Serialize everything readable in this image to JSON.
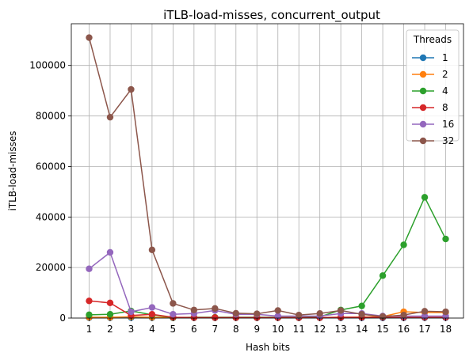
{
  "chart_data": {
    "type": "line",
    "title": "iTLB-load-misses, concurrent_output",
    "xlabel": "Hash bits",
    "ylabel": "iTLB-load-misses",
    "x": [
      1,
      2,
      3,
      4,
      5,
      6,
      7,
      8,
      9,
      10,
      11,
      12,
      13,
      14,
      15,
      16,
      17,
      18
    ],
    "xlim": [
      0.15,
      18.85
    ],
    "ylim": [
      0,
      116500
    ],
    "yticks": [
      0,
      20000,
      40000,
      60000,
      80000,
      100000
    ],
    "grid": true,
    "legend": {
      "title": "Threads",
      "placement": "top-right"
    },
    "series": [
      {
        "name": "1",
        "color": "#1f77b4",
        "values": [
          150,
          150,
          200,
          150,
          120,
          100,
          120,
          100,
          100,
          120,
          100,
          100,
          100,
          120,
          100,
          120,
          150,
          150
        ]
      },
      {
        "name": "2",
        "color": "#ff7f0e",
        "values": [
          300,
          300,
          500,
          300,
          200,
          200,
          200,
          200,
          200,
          200,
          200,
          200,
          300,
          400,
          600,
          2500,
          2200,
          2200
        ]
      },
      {
        "name": "4",
        "color": "#2ca02c",
        "values": [
          1300,
          1500,
          2800,
          1300,
          200,
          300,
          300,
          300,
          300,
          300,
          300,
          500,
          3200,
          4800,
          16800,
          29000,
          47800,
          31300
        ]
      },
      {
        "name": "8",
        "color": "#d62728",
        "values": [
          6800,
          6000,
          1000,
          1500,
          300,
          200,
          200,
          200,
          200,
          200,
          200,
          200,
          300,
          300,
          300,
          300,
          300,
          300
        ]
      },
      {
        "name": "16",
        "color": "#9467bd",
        "values": [
          19500,
          26000,
          2500,
          4200,
          1500,
          1800,
          3000,
          1500,
          1500,
          800,
          800,
          800,
          1800,
          1800,
          800,
          800,
          800,
          800
        ]
      },
      {
        "name": "32",
        "color": "#8c564b",
        "values": [
          111000,
          79500,
          90500,
          27000,
          5800,
          3200,
          3800,
          1900,
          1700,
          3000,
          1200,
          1800,
          3000,
          1500,
          600,
          1200,
          2700,
          2500
        ]
      }
    ]
  }
}
